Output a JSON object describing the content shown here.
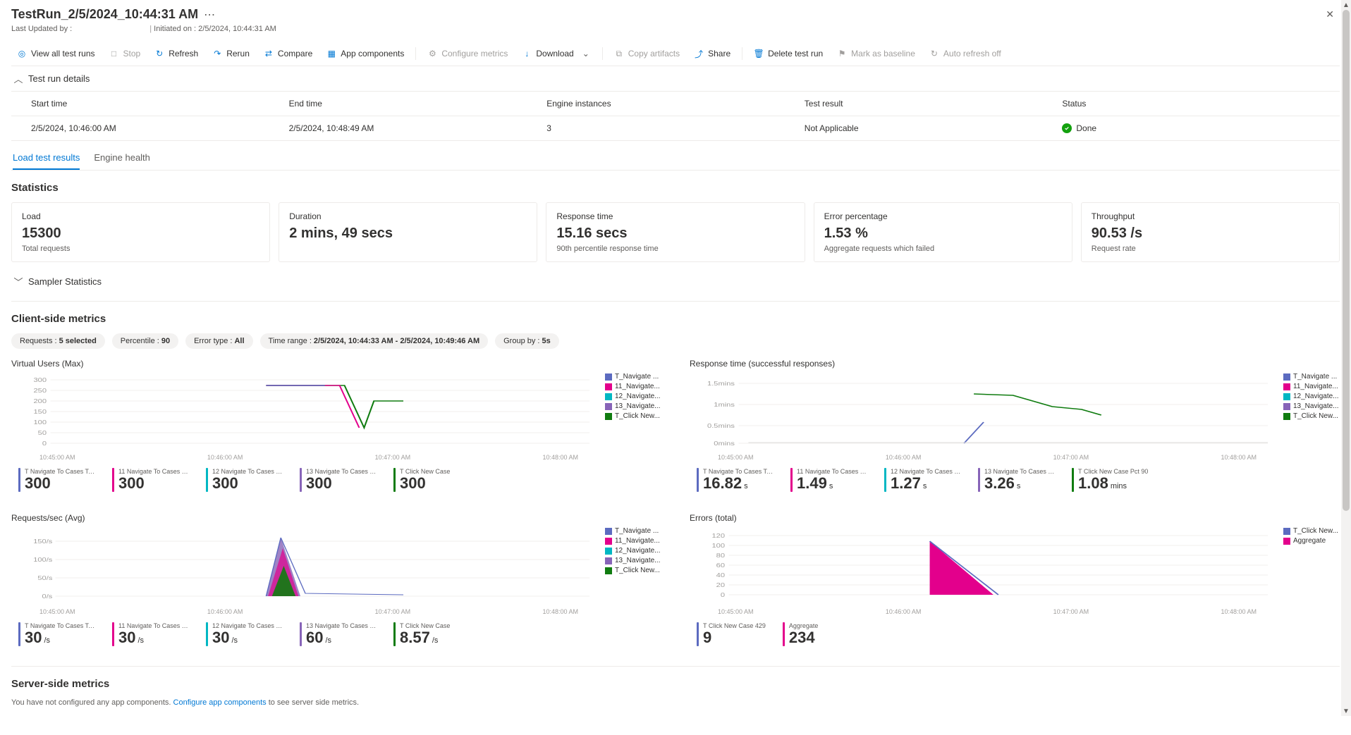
{
  "header": {
    "title": "TestRun_2/5/2024_10:44:31 AM",
    "last_updated_label": "Last Updated by :",
    "initiated_label": "Initiated on : 2/5/2024, 10:44:31 AM"
  },
  "toolbar": {
    "view_all": "View all test runs",
    "stop": "Stop",
    "refresh": "Refresh",
    "rerun": "Rerun",
    "compare": "Compare",
    "app_components": "App components",
    "configure_metrics": "Configure metrics",
    "download": "Download",
    "copy_artifacts": "Copy artifacts",
    "share": "Share",
    "delete": "Delete test run",
    "mark_baseline": "Mark as baseline",
    "auto_refresh": "Auto refresh off"
  },
  "details": {
    "section": "Test run details",
    "cols": {
      "start": "Start time",
      "end": "End time",
      "engine": "Engine instances",
      "result": "Test result",
      "status": "Status"
    },
    "row": {
      "start": "2/5/2024, 10:46:00 AM",
      "end": "2/5/2024, 10:48:49 AM",
      "engine": "3",
      "result": "Not Applicable",
      "status": "Done"
    }
  },
  "tabs": {
    "load": "Load test results",
    "engine": "Engine health"
  },
  "statistics_title": "Statistics",
  "stats": [
    {
      "label": "Load",
      "value": "15300",
      "sub": "Total requests"
    },
    {
      "label": "Duration",
      "value": "2 mins, 49 secs",
      "sub": ""
    },
    {
      "label": "Response time",
      "value": "15.16 secs",
      "sub": "90th percentile response time"
    },
    {
      "label": "Error percentage",
      "value": "1.53 %",
      "sub": "Aggregate requests which failed"
    },
    {
      "label": "Throughput",
      "value": "90.53 /s",
      "sub": "Request rate"
    }
  ],
  "sampler_title": "Sampler Statistics",
  "client_title": "Client-side metrics",
  "pills": {
    "requests": "Requests : ",
    "requests_v": "5 selected",
    "percentile": "Percentile : ",
    "percentile_v": "90",
    "error": "Error type : ",
    "error_v": "All",
    "time": "Time range : ",
    "time_v": "2/5/2024, 10:44:33 AM - 2/5/2024, 10:49:46 AM",
    "group": "Group by : ",
    "group_v": "5s"
  },
  "series_colors": {
    "s1": "#5c6bc0",
    "s2": "#e3008c",
    "s3": "#00b7c3",
    "s4": "#8764b8",
    "s5": "#107c10"
  },
  "legend_labels": {
    "s1": "T_Navigate ...",
    "s2": "11_Navigate...",
    "s3": "12_Navigate...",
    "s4": "13_Navigate...",
    "s5": "T_Click New..."
  },
  "charts": {
    "vu": {
      "title": "Virtual Users (Max)",
      "yticks": [
        "300",
        "250",
        "200",
        "150",
        "100",
        "50",
        "0"
      ],
      "xticks": [
        "10:45:00 AM",
        "10:46:00 AM",
        "10:47:00 AM",
        "10:48:00 AM"
      ],
      "sum": [
        {
          "label": "T Navigate To Cases Table",
          "val": "300",
          "unit": "",
          "color": "#5c6bc0"
        },
        {
          "label": "11 Navigate To Cases Tabl...",
          "val": "300",
          "unit": "",
          "color": "#e3008c"
        },
        {
          "label": "12 Navigate To Cases Tabl...",
          "val": "300",
          "unit": "",
          "color": "#00b7c3"
        },
        {
          "label": "13 Navigate To Cases Tabl...",
          "val": "300",
          "unit": "",
          "color": "#8764b8"
        },
        {
          "label": "T Click New Case",
          "val": "300",
          "unit": "",
          "color": "#107c10"
        }
      ]
    },
    "rt": {
      "title": "Response time (successful responses)",
      "yticks": [
        "1.5mins",
        "1mins",
        "0.5mins",
        "0mins"
      ],
      "xticks": [
        "10:45:00 AM",
        "10:46:00 AM",
        "10:47:00 AM",
        "10:48:00 AM"
      ],
      "sum": [
        {
          "label": "T Navigate To Cases Table...",
          "val": "16.82",
          "unit": "s",
          "color": "#5c6bc0"
        },
        {
          "label": "11 Navigate To Cases Tabl...",
          "val": "1.49",
          "unit": "s",
          "color": "#e3008c"
        },
        {
          "label": "12 Navigate To Cases Tabl...",
          "val": "1.27",
          "unit": "s",
          "color": "#00b7c3"
        },
        {
          "label": "13 Navigate To Cases Tabl...",
          "val": "3.26",
          "unit": "s",
          "color": "#8764b8"
        },
        {
          "label": "T Click New Case Pct 90",
          "val": "1.08",
          "unit": "mins",
          "color": "#107c10"
        }
      ]
    },
    "rps": {
      "title": "Requests/sec (Avg)",
      "yticks": [
        "150/s",
        "100/s",
        "50/s",
        "0/s"
      ],
      "xticks": [
        "10:45:00 AM",
        "10:46:00 AM",
        "10:47:00 AM",
        "10:48:00 AM"
      ],
      "sum": [
        {
          "label": "T Navigate To Cases Table",
          "val": "30",
          "unit": "/s",
          "color": "#5c6bc0"
        },
        {
          "label": "11 Navigate To Cases Tabl...",
          "val": "30",
          "unit": "/s",
          "color": "#e3008c"
        },
        {
          "label": "12 Navigate To Cases Tabl...",
          "val": "30",
          "unit": "/s",
          "color": "#00b7c3"
        },
        {
          "label": "13 Navigate To Cases Tabl...",
          "val": "60",
          "unit": "/s",
          "color": "#8764b8"
        },
        {
          "label": "T Click New Case",
          "val": "8.57",
          "unit": "/s",
          "color": "#107c10"
        }
      ]
    },
    "err": {
      "title": "Errors (total)",
      "yticks": [
        "120",
        "100",
        "80",
        "60",
        "40",
        "20",
        "0"
      ],
      "xticks": [
        "10:45:00 AM",
        "10:46:00 AM",
        "10:47:00 AM",
        "10:48:00 AM"
      ],
      "legend": [
        {
          "label": "T_Click New...",
          "color": "#5c6bc0"
        },
        {
          "label": "Aggregate",
          "color": "#e3008c"
        }
      ],
      "sum": [
        {
          "label": "T Click New Case 429",
          "val": "9",
          "unit": "",
          "color": "#5c6bc0"
        },
        {
          "label": "Aggregate",
          "val": "234",
          "unit": "",
          "color": "#e3008c"
        }
      ]
    }
  },
  "server": {
    "title": "Server-side metrics",
    "note_a": "You have not configured any app components. ",
    "link": "Configure app components",
    "note_b": " to see server side metrics."
  },
  "chart_style": {
    "grid_color": "#e1dfdd",
    "axis_text": "#a19f9d",
    "background": "#ffffff"
  }
}
